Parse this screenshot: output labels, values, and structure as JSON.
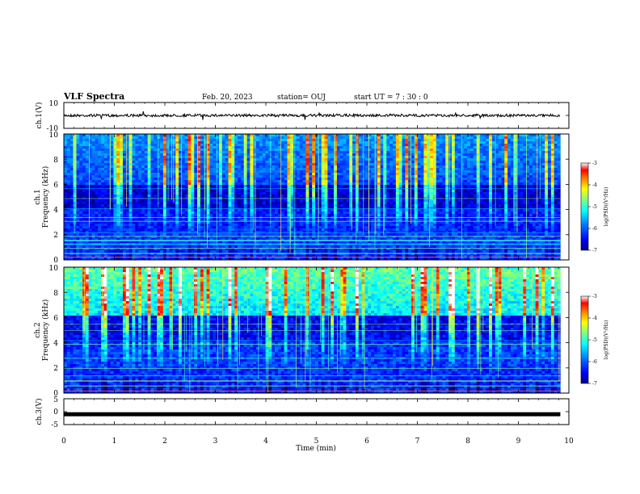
{
  "header": {
    "title": "VLF Spectra",
    "date": "Feb. 20, 2023",
    "station": "station= OUJ",
    "start": "start  UT =   7 : 30 : 0"
  },
  "colors": {
    "spectrogram_scale": [
      "#00007f",
      "#0000ff",
      "#0080ff",
      "#00ffff",
      "#80ff80",
      "#ffff00",
      "#ff8000",
      "#ff0000",
      "#ffffff"
    ]
  },
  "chart_data": [
    {
      "type": "line",
      "name": "ch1-waveform",
      "ylabel": "ch.1(V)",
      "ylim": [
        -10,
        10
      ],
      "yticks": [
        "10",
        "-10"
      ],
      "y_level": 0,
      "xlim": [
        0,
        10
      ]
    },
    {
      "type": "heatmap",
      "name": "ch1-spectrogram",
      "ylabel_lines": [
        "ch.1",
        "Frequency (kHz)"
      ],
      "ylim": [
        0,
        10
      ],
      "yticks": [
        "0",
        "2",
        "4",
        "6",
        "8",
        "10"
      ],
      "xlim": [
        0,
        10
      ],
      "data_end_min": 9.83,
      "colorbar": {
        "label": "log(PSD)(V²/Hz)",
        "range": [
          -7,
          -3
        ],
        "ticks": [
          "-3",
          "-4",
          "-5",
          "-6",
          "-7"
        ]
      }
    },
    {
      "type": "heatmap",
      "name": "ch2-spectrogram",
      "ylabel_lines": [
        "ch.2",
        "Frequency (kHz)"
      ],
      "ylim": [
        0,
        10
      ],
      "yticks": [
        "0",
        "2",
        "4",
        "6",
        "8",
        "10"
      ],
      "xlim": [
        0,
        10
      ],
      "data_end_min": 9.83,
      "colorbar": {
        "label": "log(PSD)(V²/Hz)",
        "range": [
          -7,
          -3
        ],
        "ticks": [
          "-3",
          "-4",
          "-5",
          "-6",
          "-7"
        ]
      }
    },
    {
      "type": "line",
      "name": "ch3-waveform",
      "ylabel": "ch.3(V)",
      "ylim": [
        -5,
        5
      ],
      "yticks": [
        "5",
        "0",
        "-5"
      ],
      "y_level": -1,
      "xlim": [
        0,
        10
      ],
      "xlabel": "Time  (min)",
      "xticks": [
        "0",
        "1",
        "2",
        "3",
        "4",
        "5",
        "6",
        "7",
        "8",
        "9",
        "10"
      ]
    }
  ]
}
